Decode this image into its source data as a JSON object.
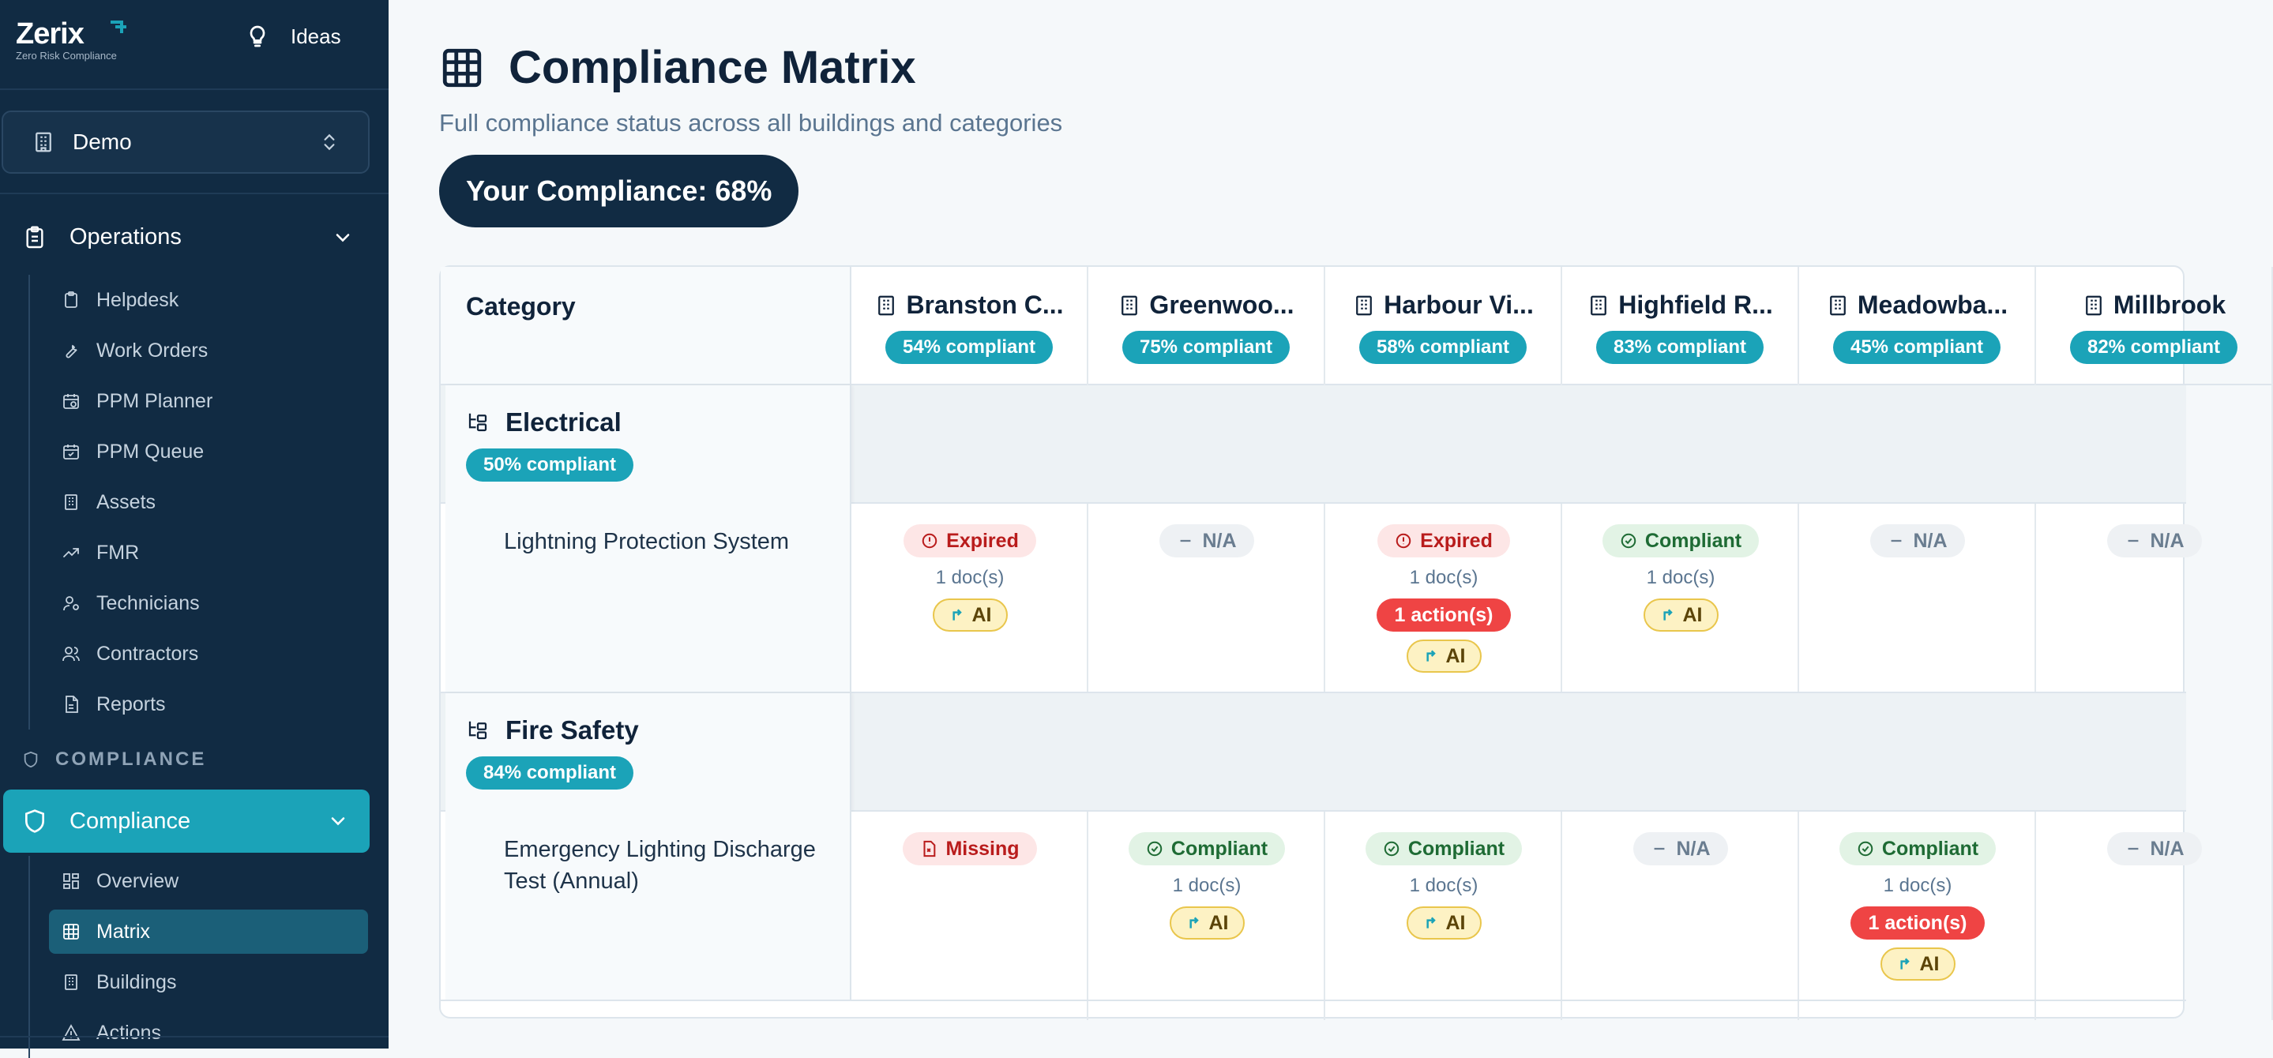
{
  "sidebar": {
    "logo": {
      "word": "Zerix",
      "tagline": "Zero Risk Compliance"
    },
    "ideas_label": "Ideas",
    "org_name": "Demo",
    "operations": {
      "label": "Operations",
      "items": [
        {
          "label": "Helpdesk",
          "icon": "clipboard-icon"
        },
        {
          "label": "Work Orders",
          "icon": "wrench-icon"
        },
        {
          "label": "PPM Planner",
          "icon": "calendar-clock-icon"
        },
        {
          "label": "PPM Queue",
          "icon": "calendar-check-icon"
        },
        {
          "label": "Assets",
          "icon": "building-icon"
        },
        {
          "label": "FMR",
          "icon": "trend-icon"
        },
        {
          "label": "Technicians",
          "icon": "user-cog-icon"
        },
        {
          "label": "Contractors",
          "icon": "users-icon"
        },
        {
          "label": "Reports",
          "icon": "file-icon"
        }
      ]
    },
    "compliance_section_label": "COMPLIANCE",
    "compliance": {
      "label": "Compliance",
      "items": [
        {
          "label": "Overview",
          "icon": "dashboard-icon"
        },
        {
          "label": "Matrix",
          "icon": "grid-icon",
          "active": true
        },
        {
          "label": "Buildings",
          "icon": "building-icon"
        },
        {
          "label": "Actions",
          "icon": "alert-icon"
        }
      ]
    }
  },
  "main": {
    "title": "Compliance Matrix",
    "subtitle": "Full compliance status across all buildings and categories",
    "score_label": "Your Compliance: 68%",
    "category_header": "Category",
    "buildings": [
      {
        "name": "Branston C...",
        "pct": "54% compliant"
      },
      {
        "name": "Greenwoo...",
        "pct": "75% compliant"
      },
      {
        "name": "Harbour Vi...",
        "pct": "58% compliant"
      },
      {
        "name": "Highfield R...",
        "pct": "83% compliant"
      },
      {
        "name": "Meadowba...",
        "pct": "45% compliant"
      },
      {
        "name": "Millbrook",
        "pct": "82% compliant"
      }
    ],
    "categories": [
      {
        "name": "Electrical",
        "pct": "50% compliant",
        "item": "Lightning Protection System",
        "cells": [
          {
            "status": "Expired",
            "docs": "1 doc(s)",
            "actions": "",
            "ai": "AI"
          },
          {
            "status": "N/A",
            "docs": "",
            "actions": "",
            "ai": ""
          },
          {
            "status": "Expired",
            "docs": "1 doc(s)",
            "actions": "1 action(s)",
            "ai": "AI"
          },
          {
            "status": "Compliant",
            "docs": "1 doc(s)",
            "actions": "",
            "ai": "AI"
          },
          {
            "status": "N/A",
            "docs": "",
            "actions": "",
            "ai": ""
          },
          {
            "status": "N/A",
            "docs": "",
            "actions": "",
            "ai": ""
          }
        ]
      },
      {
        "name": "Fire Safety",
        "pct": "84% compliant",
        "item_line1": "Emergency Lighting Discharge",
        "item_line2": "Test (Annual)",
        "cells": [
          {
            "status": "Missing",
            "docs": "",
            "actions": "",
            "ai": ""
          },
          {
            "status": "Compliant",
            "docs": "1 doc(s)",
            "actions": "",
            "ai": "AI"
          },
          {
            "status": "Compliant",
            "docs": "1 doc(s)",
            "actions": "",
            "ai": "AI"
          },
          {
            "status": "N/A",
            "docs": "",
            "actions": "",
            "ai": ""
          },
          {
            "status": "Compliant",
            "docs": "1 doc(s)",
            "actions": "1 action(s)",
            "ai": "AI"
          },
          {
            "status": "N/A",
            "docs": "",
            "actions": "",
            "ai": ""
          }
        ]
      }
    ]
  },
  "colors": {
    "sidebar_bg": "#112b43",
    "accent_teal": "#1ba3b8",
    "active_sub": "#1b5f78",
    "danger": "#ef4444",
    "ok_text": "#1e6b34"
  }
}
